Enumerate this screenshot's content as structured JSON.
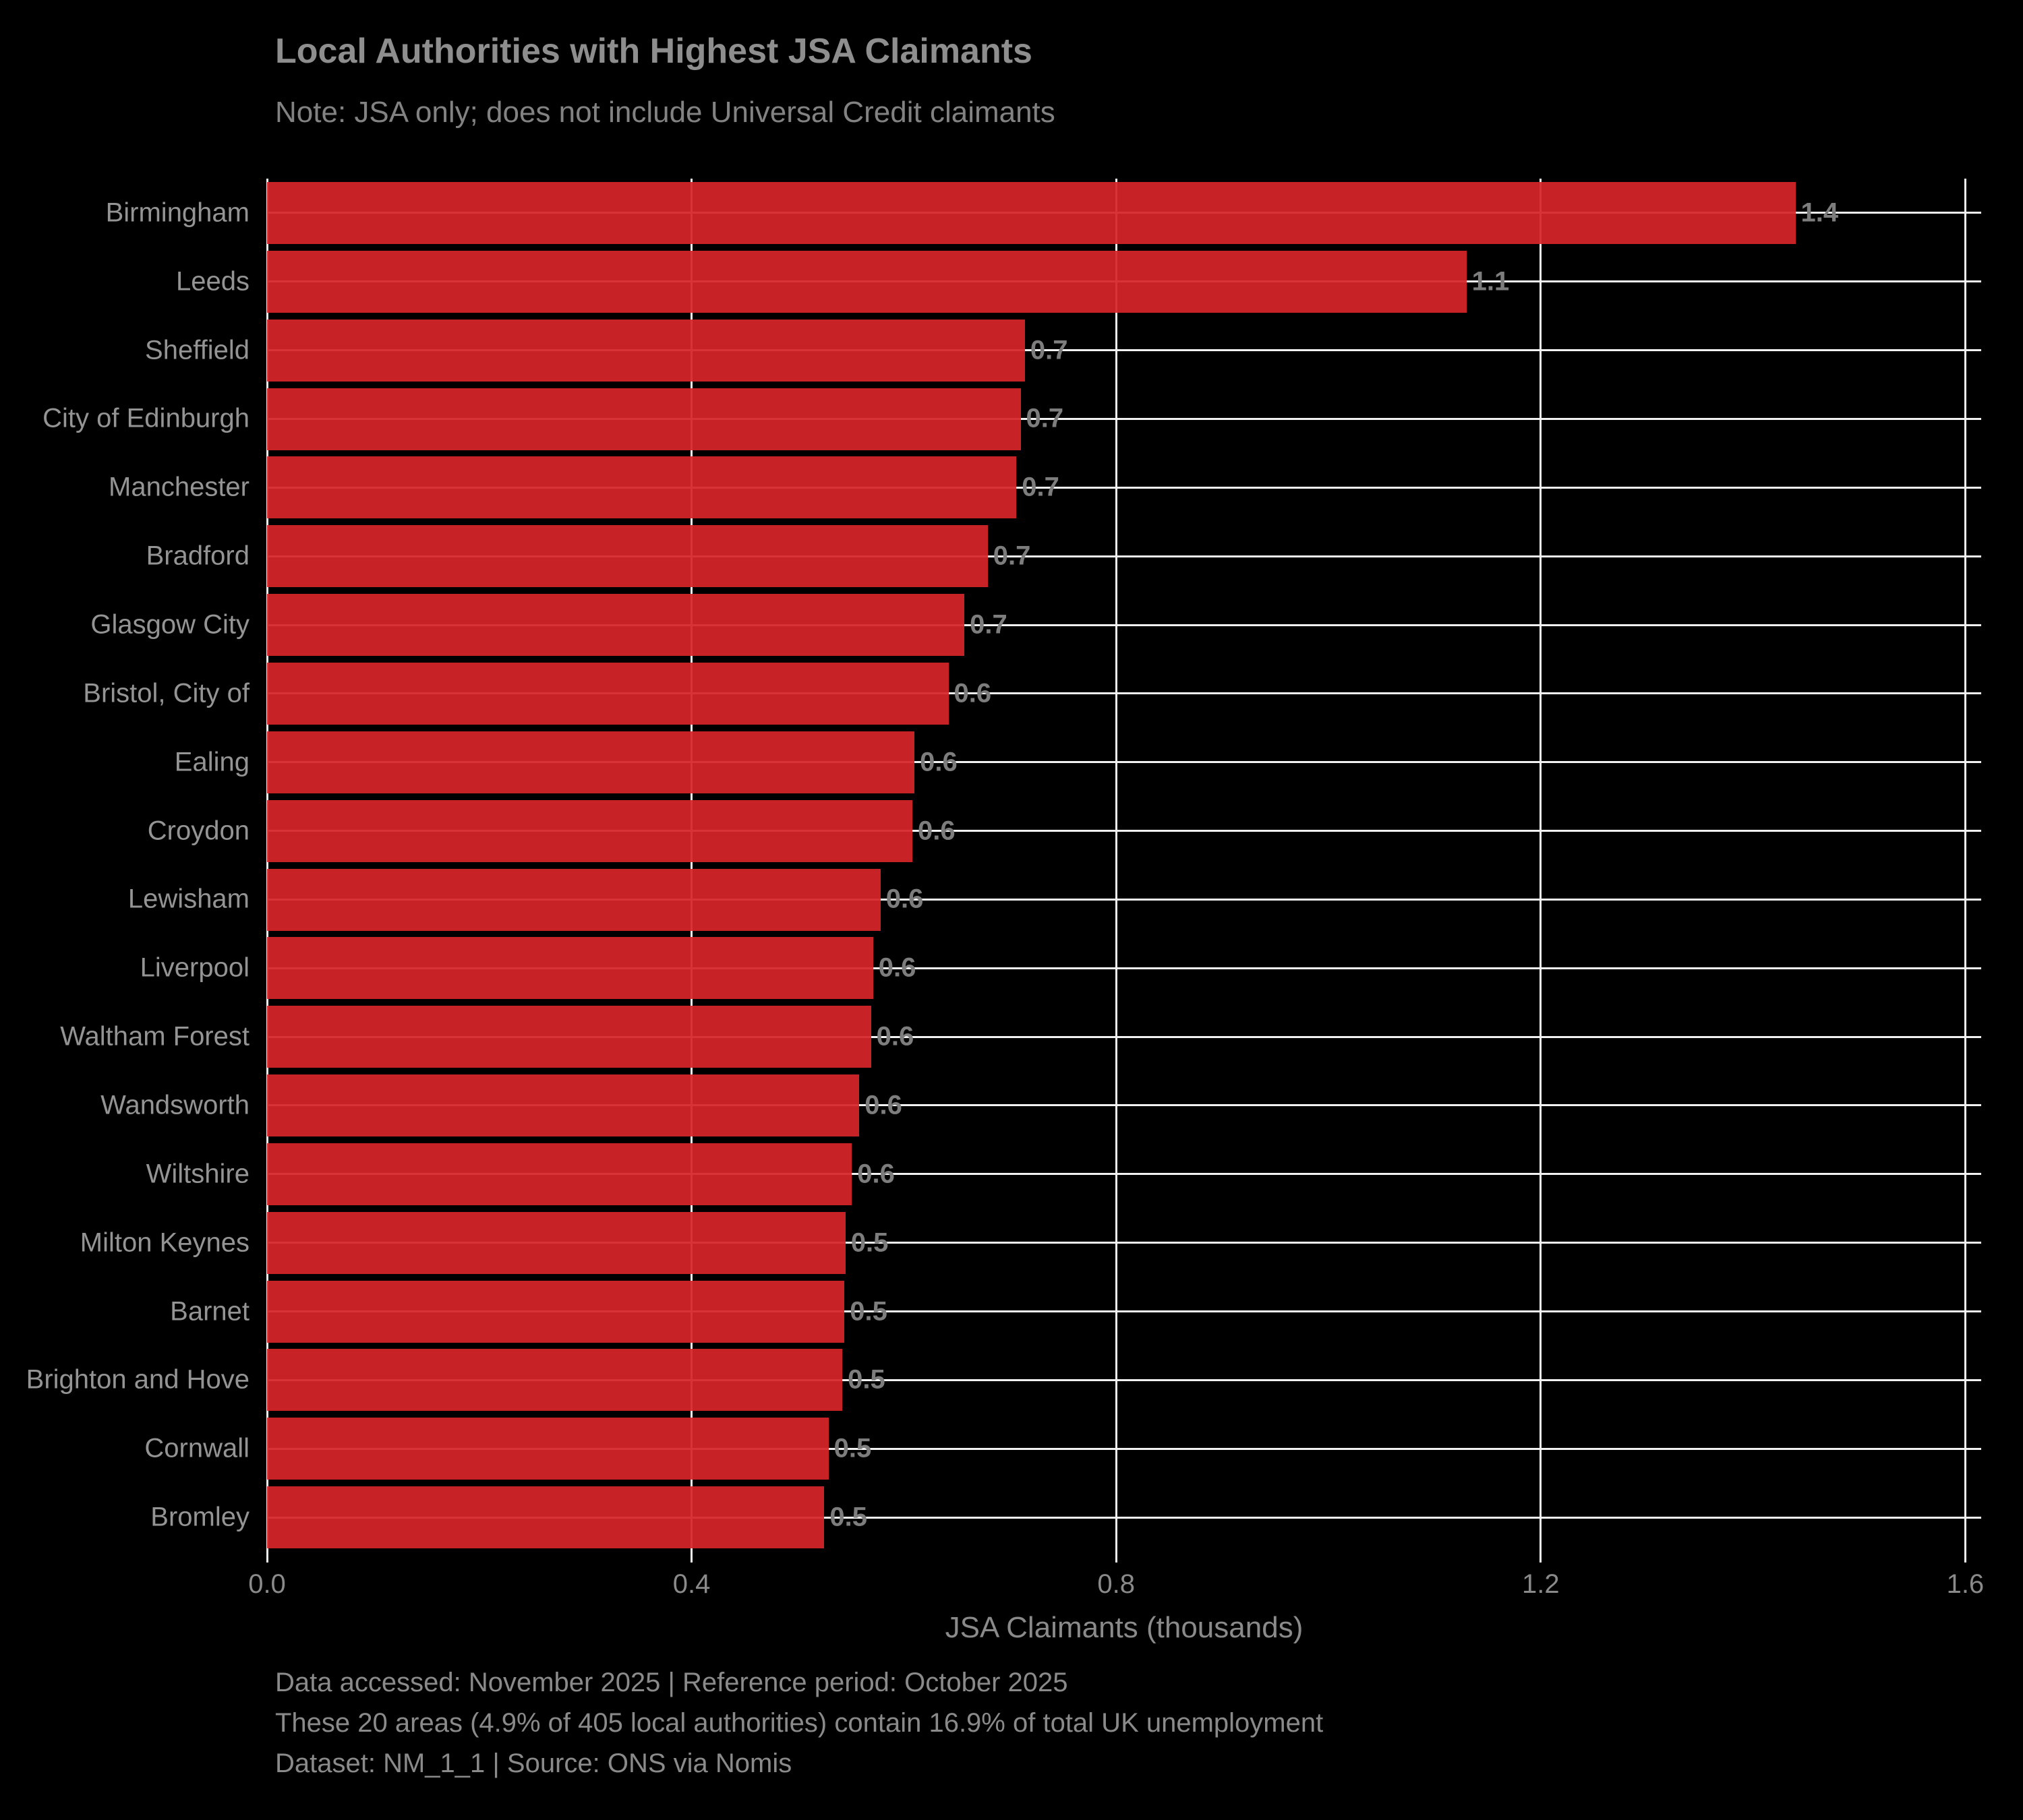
{
  "title": "Local Authorities with Highest JSA Claimants",
  "subtitle": "Note: JSA only; does not include Universal Credit claimants",
  "chart_data": {
    "type": "bar",
    "orientation": "horizontal",
    "title": "Local Authorities with Highest JSA Claimants",
    "subtitle": "Note: JSA only; does not include Universal Credit claimants",
    "xlabel": "JSA Claimants (thousands)",
    "xlim": [
      0,
      1.615
    ],
    "xticks": [
      0.0,
      0.4,
      0.8,
      1.2,
      1.6
    ],
    "xtick_labels": [
      "0.0",
      "0.4",
      "0.8",
      "1.2",
      "1.6"
    ],
    "grid": true,
    "legend_position": "none",
    "bar_color": "#d62728",
    "gridline_color": "#f2f2f2",
    "background_color": "#000000",
    "text_color": "#8a8a8a",
    "categories": [
      "Birmingham",
      "Leeds",
      "Sheffield",
      "City of Edinburgh",
      "Manchester",
      "Bradford",
      "Glasgow City",
      "Bristol, City of",
      "Ealing",
      "Croydon",
      "Lewisham",
      "Liverpool",
      "Waltham Forest",
      "Wandsworth",
      "Wiltshire",
      "Milton Keynes",
      "Barnet",
      "Brighton and Hove",
      "Cornwall",
      "Bromley"
    ],
    "values": [
      1.44,
      1.13,
      0.714,
      0.71,
      0.706,
      0.679,
      0.657,
      0.642,
      0.61,
      0.608,
      0.578,
      0.571,
      0.569,
      0.558,
      0.551,
      0.545,
      0.544,
      0.542,
      0.529,
      0.525
    ],
    "value_labels": [
      "1.4",
      "1.1",
      "0.7",
      "0.7",
      "0.7",
      "0.7",
      "0.7",
      "0.6",
      "0.6",
      "0.6",
      "0.6",
      "0.6",
      "0.6",
      "0.6",
      "0.6",
      "0.5",
      "0.5",
      "0.5",
      "0.5",
      "0.5"
    ]
  },
  "footer": {
    "line1": "Data accessed: November 2025 | Reference period: October 2025",
    "line2": "These 20 areas (4.9% of 405 local authorities) contain 16.9% of total UK unemployment",
    "line3": "Dataset: NM_1_1 | Source: ONS via Nomis"
  }
}
